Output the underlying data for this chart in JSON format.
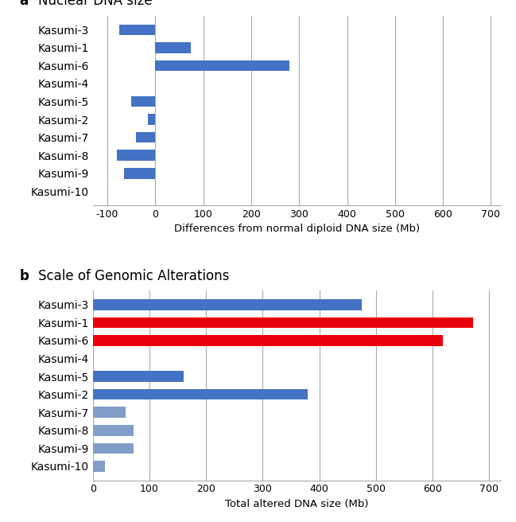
{
  "panel_a": {
    "title": "Nuclear DNA size",
    "title_label": "a",
    "categories": [
      "Kasumi-3",
      "Kasumi-1",
      "Kasumi-6",
      "Kasumi-4",
      "Kasumi-5",
      "Kasumi-2",
      "Kasumi-7",
      "Kasumi-8",
      "Kasumi-9",
      "Kasumi-10"
    ],
    "values": [
      -75,
      75,
      280,
      0,
      -50,
      -15,
      -40,
      -80,
      -65,
      0
    ],
    "bar_color": "#4472C4",
    "xlim": [
      -130,
      720
    ],
    "xticks": [
      -100,
      0,
      100,
      200,
      300,
      400,
      500,
      600,
      700
    ],
    "xlabel": "Differences from normal diploid DNA size (Mb)"
  },
  "panel_b": {
    "title": "Scale of Genomic Alterations",
    "title_label": "b",
    "categories": [
      "Kasumi-3",
      "Kasumi-1",
      "Kasumi-6",
      "Kasumi-4",
      "Kasumi-5",
      "Kasumi-2",
      "Kasumi-7",
      "Kasumi-8",
      "Kasumi-9",
      "Kasumi-10"
    ],
    "values": [
      475,
      672,
      618,
      0,
      160,
      380,
      58,
      72,
      72,
      22
    ],
    "bar_colors": [
      "#4472C4",
      "#E8000A",
      "#E8000A",
      "#4472C4",
      "#4472C4",
      "#4472C4",
      "#7F9EC8",
      "#7F9EC8",
      "#7F9EC8",
      "#7F9EC8"
    ],
    "xlim": [
      0,
      720
    ],
    "xticks": [
      0,
      100,
      200,
      300,
      400,
      500,
      600,
      700
    ],
    "xlabel": "Total altered DNA size (Mb)"
  },
  "grid_color": "#AAAAAA",
  "grid_linewidth": 0.8,
  "bar_height": 0.6,
  "figure_width": 6.49,
  "figure_height": 6.56,
  "dpi": 100,
  "bg_color": "#FFFFFF"
}
